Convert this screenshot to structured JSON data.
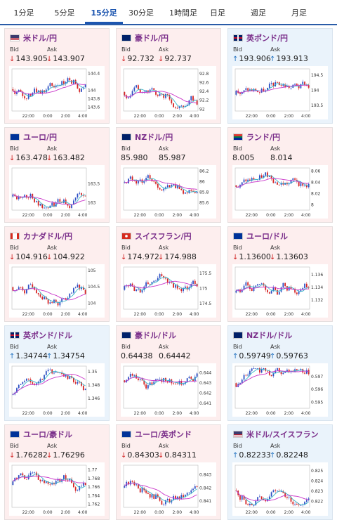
{
  "tabs": [
    {
      "label": "1分足",
      "active": false
    },
    {
      "label": "5分足",
      "active": false
    },
    {
      "label": "15分足",
      "active": true
    },
    {
      "label": "30分足",
      "active": false
    },
    {
      "label": "1時間足",
      "active": false
    },
    {
      "label": "日足",
      "active": false
    },
    {
      "label": "週足",
      "active": false
    },
    {
      "label": "月足",
      "active": false
    }
  ],
  "bid_label": "Bid",
  "ask_label": "Ask",
  "x_ticks": [
    "22:00",
    "0:00",
    "2:00",
    "4:00"
  ],
  "colors": {
    "up_candle": "#2d4fc4",
    "down_candle": "#d62424",
    "ma_short": "#38b6c9",
    "ma_long": "#c935c9",
    "down_bg": "#fdeeee",
    "up_bg": "#eaf3fb"
  },
  "pairs": [
    {
      "title": "米ドル/円",
      "flag": "us-jp",
      "direction": "down",
      "bid": "143.905",
      "ask": "143.907",
      "y_ticks": [
        "144.4",
        "144",
        "143.8",
        "143.6"
      ],
      "y_range": [
        143.5,
        144.5
      ],
      "seed": 1
    },
    {
      "title": "豪ドル/円",
      "flag": "au-jp",
      "direction": "down",
      "bid": "92.732",
      "ask": "92.737",
      "y_ticks": [
        "92.8",
        "92.6",
        "92.4",
        "92.2",
        "92"
      ],
      "y_range": [
        91.95,
        92.9
      ],
      "seed": 2
    },
    {
      "title": "英ポンド/円",
      "flag": "gb-jp",
      "direction": "up",
      "bid": "193.906",
      "ask": "193.913",
      "y_ticks": [
        "194.5",
        "194",
        "193.5"
      ],
      "y_range": [
        193.3,
        194.7
      ],
      "seed": 3
    },
    {
      "title": "ユーロ/円",
      "flag": "eu-jp",
      "direction": "down",
      "bid": "163.478",
      "ask": "163.482",
      "y_ticks": [
        "163.5",
        "163"
      ],
      "y_range": [
        162.8,
        163.9
      ],
      "seed": 4
    },
    {
      "title": "NZドル/円",
      "flag": "nz-jp",
      "direction": "none",
      "bid": "85.980",
      "ask": "85.987",
      "y_ticks": [
        "86.2",
        "86",
        "85.8",
        "85.6"
      ],
      "y_range": [
        85.45,
        86.25
      ],
      "seed": 5
    },
    {
      "title": "ランド/円",
      "flag": "za-jp",
      "direction": "none",
      "bid": "8.005",
      "ask": "8.014",
      "y_ticks": [
        "8.06",
        "8.04",
        "8.02",
        "8"
      ],
      "y_range": [
        7.99,
        8.065
      ],
      "seed": 6
    },
    {
      "title": "カナダドル/円",
      "flag": "ca-jp",
      "direction": "down",
      "bid": "104.916",
      "ask": "104.922",
      "y_ticks": [
        "105",
        "104.5",
        "104"
      ],
      "y_range": [
        103.8,
        105.1
      ],
      "seed": 7
    },
    {
      "title": "スイスフラン/円",
      "flag": "ch-jp",
      "direction": "down",
      "bid": "174.972",
      "ask": "174.988",
      "y_ticks": [
        "175.5",
        "175",
        "174.5"
      ],
      "y_range": [
        174.3,
        175.7
      ],
      "seed": 8
    },
    {
      "title": "ユーロ/ドル",
      "flag": "eu-us",
      "direction": "down",
      "bid": "1.13600",
      "ask": "1.13603",
      "y_ticks": [
        "1.136",
        "1.134",
        "1.132"
      ],
      "y_range": [
        1.1305,
        1.1372
      ],
      "seed": 9
    },
    {
      "title": "英ポンド/ドル",
      "flag": "gb-us",
      "direction": "up",
      "bid": "1.34744",
      "ask": "1.34754",
      "y_ticks": [
        "1.35",
        "1.348",
        "1.346"
      ],
      "y_range": [
        1.3445,
        1.3508
      ],
      "seed": 10
    },
    {
      "title": "豪ドル/ドル",
      "flag": "au-us",
      "direction": "none",
      "bid": "0.64438",
      "ask": "0.64442",
      "y_ticks": [
        "0.644",
        "0.643",
        "0.642",
        "0.641"
      ],
      "y_range": [
        0.6405,
        0.6446
      ],
      "seed": 11
    },
    {
      "title": "NZドル/ドル",
      "flag": "nz-us",
      "direction": "up",
      "bid": "0.59749",
      "ask": "0.59763",
      "y_ticks": [
        "0.597",
        "0.596",
        "0.595"
      ],
      "y_range": [
        0.5945,
        0.5978
      ],
      "seed": 12
    },
    {
      "title": "ユーロ/豪ドル",
      "flag": "eu-au",
      "direction": "down",
      "bid": "1.76282",
      "ask": "1.76296",
      "y_ticks": [
        "1.77",
        "1.768",
        "1.766",
        "1.764",
        "1.762"
      ],
      "y_range": [
        1.7612,
        1.771
      ],
      "seed": 13
    },
    {
      "title": "ユーロ/英ポンド",
      "flag": "eu-gb",
      "direction": "down",
      "bid": "0.84303",
      "ask": "0.84311",
      "y_ticks": [
        "0.843",
        "0.842",
        "0.841"
      ],
      "y_range": [
        0.8405,
        0.8437
      ],
      "seed": 14
    },
    {
      "title": "米ドル/スイスフラン",
      "flag": "us-ch",
      "direction": "up",
      "bid": "0.82233",
      "ask": "0.82248",
      "y_ticks": [
        "0.825",
        "0.824",
        "0.823",
        "0.822"
      ],
      "y_range": [
        0.8214,
        0.8255
      ],
      "seed": 15
    }
  ]
}
